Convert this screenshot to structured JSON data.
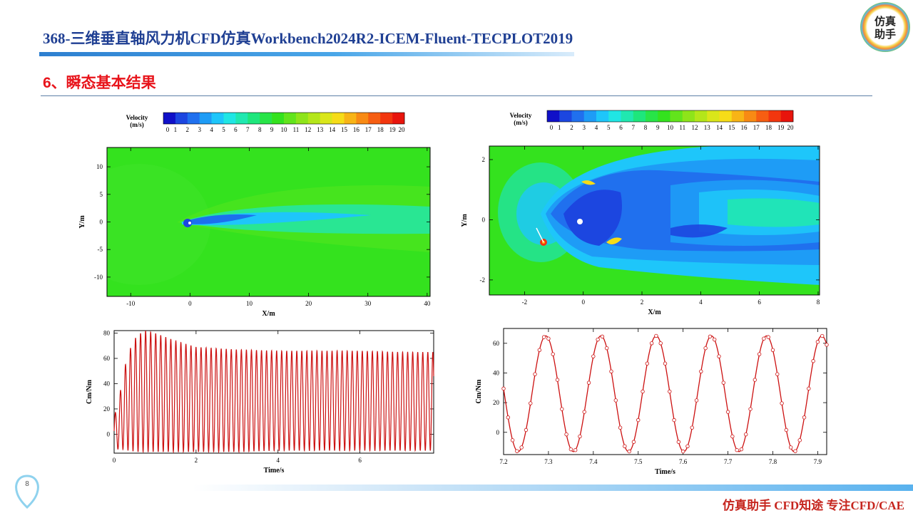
{
  "header": {
    "title": "368-三维垂直轴风力机CFD仿真Workbench2024R2-ICEM-Fluent-TECPLOT2019",
    "logo_text_top": "仿真",
    "logo_text_bottom": "助手"
  },
  "section": {
    "title": "6、瞬态基本结果"
  },
  "colorbar": {
    "title_line1": "Velocity",
    "title_line2": "(m/s)",
    "ticks": [
      "0",
      "1",
      "2",
      "3",
      "4",
      "5",
      "6",
      "7",
      "8",
      "9",
      "10",
      "11",
      "12",
      "13",
      "14",
      "15",
      "16",
      "17",
      "18",
      "19",
      "20"
    ],
    "colors": [
      "#1010c8",
      "#1c46e0",
      "#2070ee",
      "#1e9cf6",
      "#1ec6fa",
      "#20e6e4",
      "#20e8b0",
      "#1ee67c",
      "#28e448",
      "#34e21e",
      "#62e41c",
      "#8ee41a",
      "#b4e61a",
      "#dae61a",
      "#f6dc18",
      "#f8b416",
      "#f88a14",
      "#f65e12",
      "#f2360e",
      "#e8140c"
    ]
  },
  "contour_left": {
    "xlabel": "X/m",
    "ylabel": "Y/m",
    "x_ticks": [
      "-10",
      "0",
      "10",
      "20",
      "30",
      "40"
    ],
    "y_ticks": [
      "10",
      "5",
      "0",
      "-5",
      "-10"
    ]
  },
  "contour_right": {
    "xlabel": "X/m",
    "ylabel": "Y/m",
    "x_ticks": [
      "-2",
      "0",
      "2",
      "4",
      "6",
      "8"
    ],
    "y_ticks": [
      "2",
      "0",
      "-2"
    ]
  },
  "chart_data": [
    {
      "type": "line",
      "title": "",
      "xlabel": "Time/s",
      "ylabel": "Cm/Nm",
      "xlim": [
        0,
        7.8
      ],
      "ylim": [
        -15,
        82
      ],
      "x_ticks": [
        "0",
        "2",
        "4",
        "6"
      ],
      "y_ticks": [
        "80",
        "60",
        "40",
        "20",
        "0"
      ],
      "grid": false,
      "series": [
        {
          "color": "#cc1010",
          "period": 0.123,
          "envelope_t": [
            0.0,
            0.1,
            0.2,
            0.35,
            0.55,
            0.75,
            1.0,
            1.5,
            2.0,
            3.0,
            4.0,
            5.0,
            6.0,
            7.0,
            7.8
          ],
          "envelope_max": [
            15,
            22,
            45,
            65,
            78,
            82,
            80,
            74,
            69,
            67,
            66,
            66,
            66,
            65,
            65
          ],
          "envelope_min": [
            -10,
            -12,
            -12,
            -13,
            -14,
            -14,
            -14,
            -14,
            -14,
            -14,
            -13,
            -13,
            -13,
            -13,
            -13
          ]
        }
      ]
    },
    {
      "type": "line",
      "title": "",
      "xlabel": "Time/s",
      "ylabel": "Cm/Nm",
      "xlim": [
        7.2,
        7.92
      ],
      "ylim": [
        -15,
        70
      ],
      "x_ticks": [
        "7.2",
        "7.3",
        "7.4",
        "7.5",
        "7.6",
        "7.7",
        "7.8",
        "7.9"
      ],
      "y_ticks": [
        "60",
        "40",
        "20",
        "0"
      ],
      "grid": false,
      "series": [
        {
          "color": "#cc1010",
          "marker": "circle",
          "max": 65,
          "min": -13,
          "period": 0.123,
          "peak_t": 7.294,
          "marker_step": 0.01
        }
      ]
    }
  ],
  "footer": {
    "text": "仿真助手  CFD知途  专注CFD/CAE",
    "page_number": "8"
  }
}
